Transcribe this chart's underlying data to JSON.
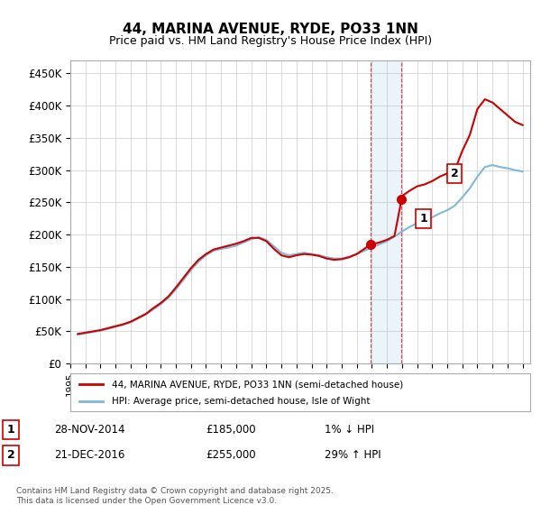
{
  "title": "44, MARINA AVENUE, RYDE, PO33 1NN",
  "subtitle": "Price paid vs. HM Land Registry's House Price Index (HPI)",
  "ylabel_ticks": [
    "£0",
    "£50K",
    "£100K",
    "£150K",
    "£200K",
    "£250K",
    "£300K",
    "£350K",
    "£400K",
    "£450K"
  ],
  "ytick_values": [
    0,
    50000,
    100000,
    150000,
    200000,
    250000,
    300000,
    350000,
    400000,
    450000
  ],
  "ylim": [
    0,
    470000
  ],
  "xlim_start": 1995.0,
  "xlim_end": 2025.5,
  "line1_color": "#cc0000",
  "line2_color": "#7fb9d8",
  "marker1_color": "#cc0000",
  "transaction1_x": 2014.91,
  "transaction1_y": 185000,
  "transaction1_label": "1",
  "transaction2_x": 2016.97,
  "transaction2_y": 255000,
  "transaction2_label": "2",
  "vline_x1": 2014.91,
  "vline_x2": 2016.97,
  "shade_x1": 2014.91,
  "shade_x2": 2016.97,
  "legend_line1": "44, MARINA AVENUE, RYDE, PO33 1NN (semi-detached house)",
  "legend_line2": "HPI: Average price, semi-detached house, Isle of Wight",
  "table_row1": [
    "1",
    "28-NOV-2014",
    "£185,000",
    "1% ↓ HPI"
  ],
  "table_row2": [
    "2",
    "21-DEC-2016",
    "£255,000",
    "29% ↑ HPI"
  ],
  "footer": "Contains HM Land Registry data © Crown copyright and database right 2025.\nThis data is licensed under the Open Government Licence v3.0.",
  "background_color": "#ffffff",
  "grid_color": "#cccccc"
}
